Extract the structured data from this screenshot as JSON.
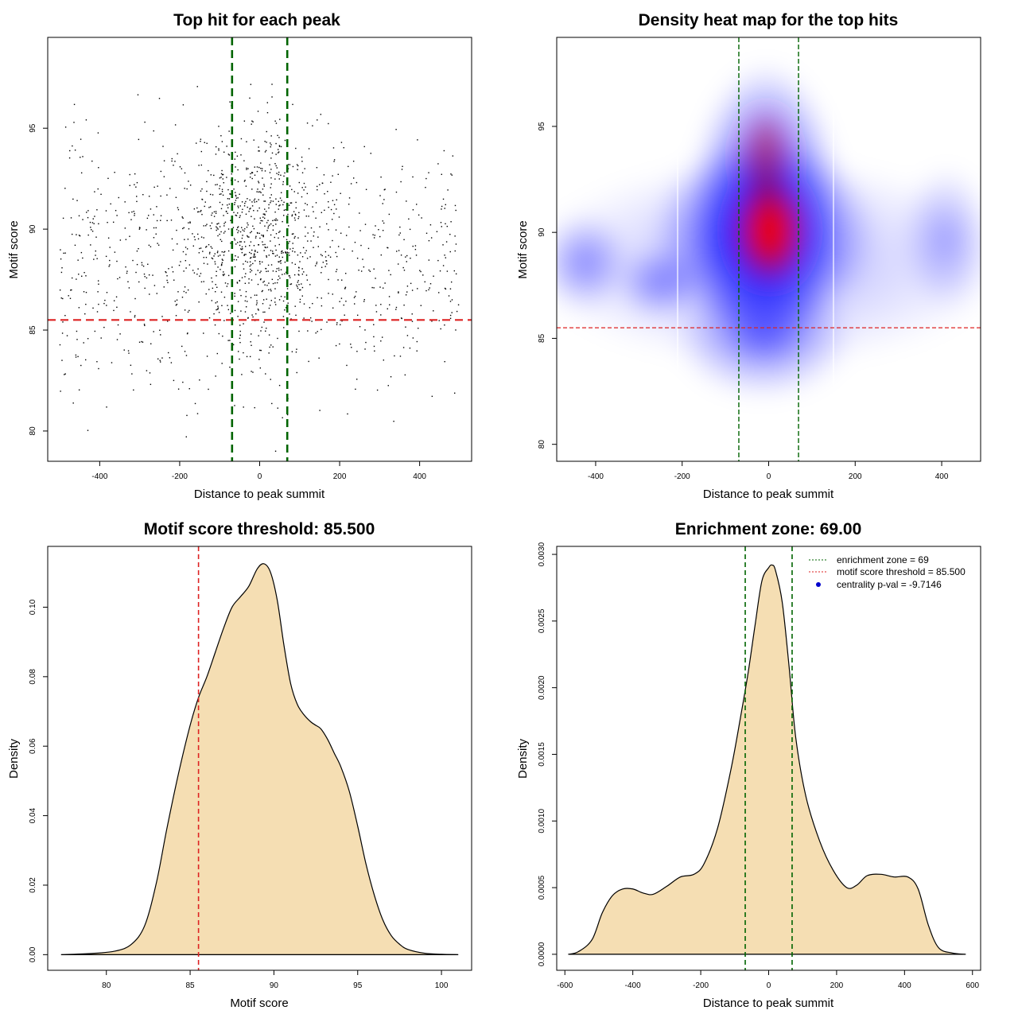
{
  "colors": {
    "point": "#000000",
    "threshold_line": "#dd2222",
    "zone_line": "#006400",
    "density_fill": "#f5deb3",
    "heat_low": "#ffffff",
    "heat_mid": "#0000ff",
    "heat_high": "#ff0000"
  },
  "chart_data": [
    {
      "id": "scatter",
      "type": "scatter",
      "title": "Top hit for each peak",
      "xlabel": "Distance to peak summit",
      "ylabel": "Motif score",
      "xlim": [
        -530,
        530
      ],
      "ylim": [
        78.5,
        99.5
      ],
      "xticks": [
        -400,
        -200,
        0,
        200,
        400
      ],
      "yticks": [
        80,
        85,
        90,
        95
      ],
      "xtick_labels": [
        "-400",
        "-200",
        "0",
        "200",
        "400"
      ],
      "ytick_labels": [
        "80",
        "85",
        "90",
        "95"
      ],
      "hline": 85.5,
      "vlines": [
        -69,
        69
      ],
      "points_summary": {
        "count": 1500,
        "x_range": [
          -500,
          500
        ],
        "score_range": [
          79,
          99
        ],
        "central_mode_x": 0,
        "central_mode_score": 90
      }
    },
    {
      "id": "heatmap",
      "type": "heatmap",
      "title": "Density heat map for the top hits",
      "xlabel": "Distance to peak summit",
      "ylabel": "Motif score",
      "xlim": [
        -490,
        490
      ],
      "ylim": [
        79.2,
        99.2
      ],
      "xticks": [
        -400,
        -200,
        0,
        200,
        400
      ],
      "yticks": [
        80,
        85,
        90,
        95
      ],
      "xtick_labels": [
        "-400",
        "-200",
        "0",
        "200",
        "400"
      ],
      "ytick_labels": [
        "80",
        "85",
        "90",
        "95"
      ],
      "hline": 85.5,
      "vlines": [
        -69,
        69
      ],
      "density_peak": {
        "x": 10,
        "score": 90
      }
    },
    {
      "id": "score_density",
      "type": "area",
      "title": "Motif score threshold: 85.500",
      "xlabel": "Motif score",
      "ylabel": "Density",
      "xlim": [
        76.5,
        101.8
      ],
      "ylim": [
        -0.0045,
        0.1175
      ],
      "xticks": [
        80,
        85,
        90,
        95,
        100
      ],
      "yticks": [
        0,
        0.02,
        0.04,
        0.06,
        0.08,
        0.1
      ],
      "xtick_labels": [
        "80",
        "85",
        "90",
        "95",
        "100"
      ],
      "ytick_labels": [
        "0.00",
        "0.02",
        "0.04",
        "0.06",
        "0.08",
        "0.10"
      ],
      "vline": 85.5,
      "x": [
        77.3,
        79,
        80.5,
        81.5,
        82.3,
        83,
        83.6,
        84.3,
        85,
        85.5,
        86,
        86.5,
        87,
        87.5,
        88,
        88.5,
        89,
        89.4,
        89.8,
        90.2,
        90.6,
        91,
        91.4,
        91.8,
        92.2,
        92.5,
        92.8,
        93.2,
        93.6,
        94,
        94.5,
        95,
        95.5,
        96,
        96.5,
        97,
        97.5,
        98,
        99,
        100,
        101
      ],
      "y": [
        0,
        0.0003,
        0.001,
        0.003,
        0.0085,
        0.021,
        0.036,
        0.052,
        0.066,
        0.074,
        0.08,
        0.087,
        0.094,
        0.1,
        0.103,
        0.106,
        0.111,
        0.1125,
        0.11,
        0.102,
        0.089,
        0.078,
        0.072,
        0.069,
        0.067,
        0.066,
        0.065,
        0.062,
        0.058,
        0.054,
        0.047,
        0.037,
        0.026,
        0.017,
        0.01,
        0.0055,
        0.003,
        0.0015,
        0.0004,
        0.0001,
        0
      ]
    },
    {
      "id": "distance_density",
      "type": "area",
      "title": "Enrichment zone: 69.00",
      "xlabel": "Distance to peak summit",
      "ylabel": "Density",
      "xlim": [
        -624,
        624
      ],
      "ylim": [
        -0.00012,
        0.00306
      ],
      "xticks": [
        -600,
        -400,
        -200,
        0,
        200,
        400,
        600
      ],
      "yticks": [
        0,
        0.0005,
        0.001,
        0.0015,
        0.002,
        0.0025,
        0.003
      ],
      "xtick_labels": [
        "-600",
        "-400",
        "-200",
        "0",
        "200",
        "400",
        "600"
      ],
      "ytick_labels": [
        "0.0000",
        "0.0005",
        "0.0010",
        "0.0015",
        "0.0020",
        "0.0025",
        "0.0030"
      ],
      "vlines": [
        -69,
        69
      ],
      "x": [
        -590,
        -560,
        -520,
        -490,
        -460,
        -430,
        -400,
        -370,
        -340,
        -300,
        -260,
        -220,
        -190,
        -150,
        -110,
        -80,
        -60,
        -40,
        -20,
        0,
        10,
        20,
        40,
        60,
        80,
        110,
        150,
        190,
        230,
        260,
        290,
        330,
        370,
        410,
        440,
        470,
        500,
        540,
        580
      ],
      "y": [
        0,
        2e-05,
        0.00011,
        0.00031,
        0.00044,
        0.00049,
        0.00049,
        0.00046,
        0.00045,
        0.00051,
        0.00058,
        0.0006,
        0.00068,
        0.00095,
        0.0014,
        0.00182,
        0.00212,
        0.00247,
        0.0028,
        0.0029,
        0.00292,
        0.00288,
        0.00264,
        0.00216,
        0.00162,
        0.00118,
        0.00085,
        0.00063,
        0.0005,
        0.00052,
        0.00059,
        0.0006,
        0.00058,
        0.00058,
        0.00049,
        0.00022,
        5e-05,
        1e-05,
        0
      ],
      "legend": [
        {
          "label": "enrichment zone = 69",
          "style": "dotted",
          "color": "#006400"
        },
        {
          "label": "motif score threshold = 85.500",
          "style": "dotted",
          "color": "#dd2222"
        },
        {
          "label": "centrality p-val = -9.7146",
          "style": "point",
          "color": "#0000cc"
        }
      ],
      "legend_position": "top-right"
    }
  ]
}
